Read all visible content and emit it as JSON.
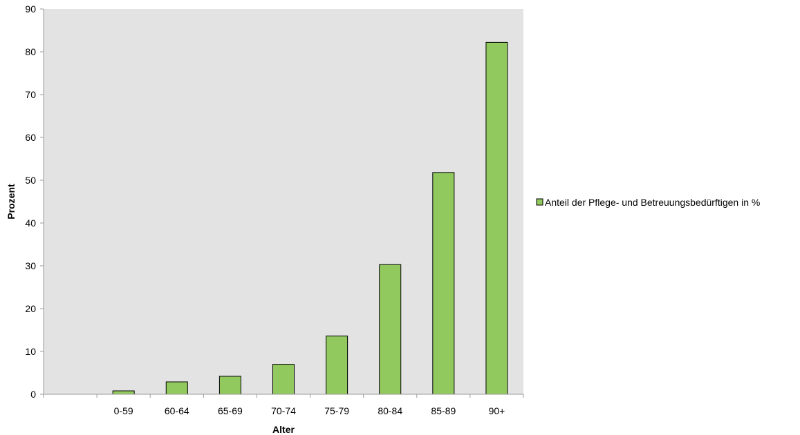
{
  "chart_data": {
    "type": "bar",
    "categories": [
      "",
      "0-59",
      "60-64",
      "65-69",
      "70-74",
      "75-79",
      "80-84",
      "85-89",
      "90+"
    ],
    "series": [
      {
        "name": "Anteil der Pflege- und Betreuungsbedürftigen in %",
        "values": [
          null,
          0.8,
          2.9,
          4.2,
          7.0,
          13.6,
          30.3,
          51.8,
          82.2
        ],
        "color": "#92c95f"
      }
    ],
    "xlabel": "Alter",
    "ylabel": "Prozent",
    "ylim": [
      0,
      90
    ],
    "yticks": [
      0,
      10,
      20,
      30,
      40,
      50,
      60,
      70,
      80,
      90
    ],
    "grid": false,
    "legend": "right",
    "plot_background": "#e3e3e3"
  }
}
